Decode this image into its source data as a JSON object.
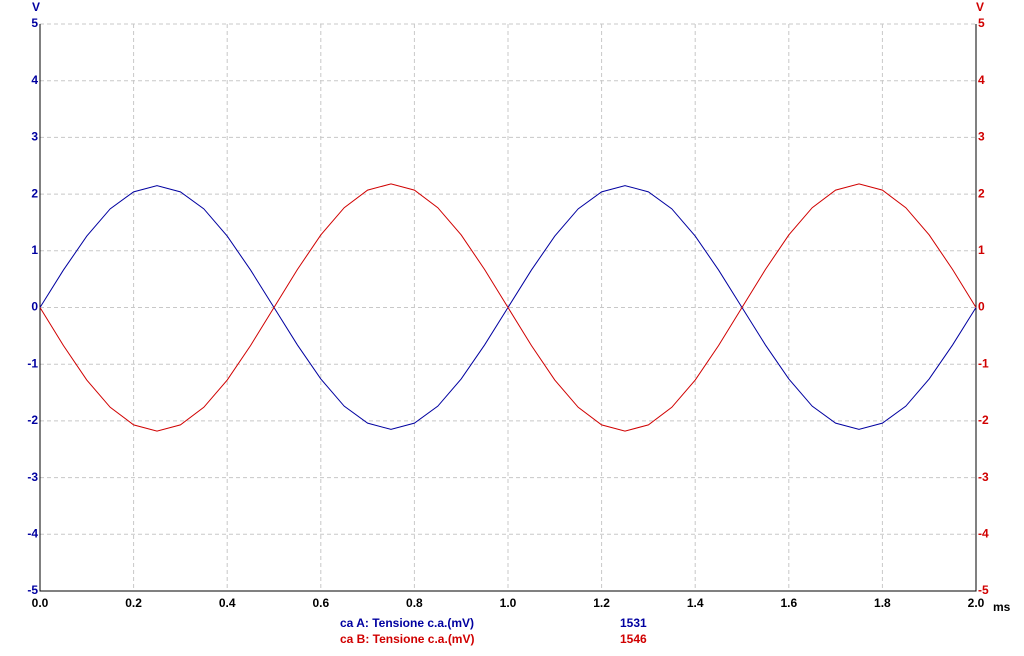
{
  "chart_data": {
    "type": "line",
    "ylabel": "V",
    "y2label": "V",
    "xlabel": "ms",
    "x": [
      0,
      0.05,
      0.1,
      0.15,
      0.2,
      0.25,
      0.3,
      0.35,
      0.4,
      0.45,
      0.5,
      0.55,
      0.6,
      0.65,
      0.7,
      0.75,
      0.8,
      0.85,
      0.9,
      0.95,
      1,
      1.05,
      1.1,
      1.15,
      1.2,
      1.25,
      1.3,
      1.35,
      1.4,
      1.45,
      1.5,
      1.55,
      1.6,
      1.65,
      1.7,
      1.75,
      1.8,
      1.85,
      1.9,
      1.95,
      2
    ],
    "series": [
      {
        "name": "ca A: Tensione c.a.(mV)",
        "readout": 1531,
        "color": "#0000a0",
        "values": [
          0,
          0.66,
          1.26,
          1.74,
          2.04,
          2.15,
          2.04,
          1.74,
          1.26,
          0.66,
          0,
          -0.66,
          -1.26,
          -1.74,
          -2.04,
          -2.15,
          -2.04,
          -1.74,
          -1.26,
          -0.66,
          0,
          0.66,
          1.26,
          1.74,
          2.04,
          2.15,
          2.04,
          1.74,
          1.26,
          0.66,
          0,
          -0.66,
          -1.26,
          -1.74,
          -2.04,
          -2.15,
          -2.04,
          -1.74,
          -1.26,
          -0.66,
          0
        ]
      },
      {
        "name": "ca B: Tensione c.a.(mV)",
        "readout": 1546,
        "color": "#d00000",
        "axis": "y2",
        "values": [
          0,
          -0.67,
          -1.28,
          -1.76,
          -2.07,
          -2.18,
          -2.07,
          -1.76,
          -1.28,
          -0.67,
          0,
          0.67,
          1.28,
          1.76,
          2.07,
          2.18,
          2.07,
          1.76,
          1.28,
          0.67,
          0,
          -0.67,
          -1.28,
          -1.76,
          -2.07,
          -2.18,
          -2.07,
          -1.76,
          -1.28,
          -0.67,
          0,
          0.67,
          1.28,
          1.76,
          2.07,
          2.18,
          2.07,
          1.76,
          1.28,
          0.67,
          0
        ]
      }
    ],
    "xlim": [
      0,
      2
    ],
    "xticks": [
      {
        "value": 0,
        "label": "0.0"
      },
      0.2,
      0.4,
      0.6,
      0.8,
      {
        "value": 1,
        "label": "1.0"
      },
      1.2,
      1.4,
      1.6,
      1.8,
      {
        "value": 2,
        "label": "2.0"
      }
    ],
    "ylim": [
      -5,
      5
    ],
    "yticks": [
      5,
      4,
      3,
      2,
      1,
      0,
      -1,
      -2,
      -3,
      -4,
      -5
    ],
    "y2lim": [
      -5,
      5
    ],
    "y2ticks": [
      5,
      4,
      3,
      2,
      1,
      0,
      -1,
      -2,
      -3,
      -4,
      -5
    ],
    "grid": true
  }
}
